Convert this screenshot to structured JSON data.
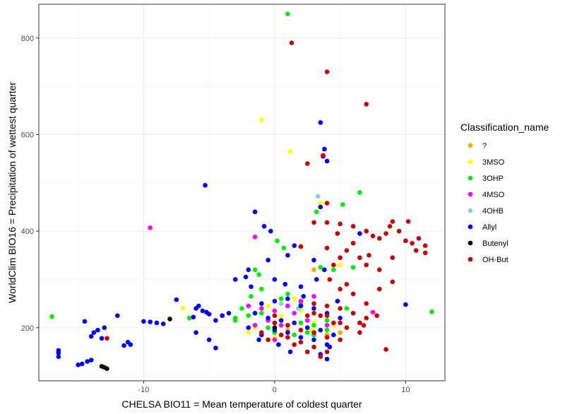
{
  "chart_data": {
    "type": "scatter",
    "xlabel": "CHELSA BIO11 = Mean temperature of coldest quarter",
    "ylabel": "WorldClim BIO16 = Precipitation of wettest quarter",
    "xlim": [
      -18,
      13
    ],
    "ylim": [
      90,
      870
    ],
    "x_ticks": [
      -10,
      0,
      10
    ],
    "y_ticks": [
      200,
      400,
      600,
      800
    ],
    "grid": true,
    "legend_title": "Classification_name",
    "legend_position": "right",
    "series": [
      {
        "name": "?",
        "color": "#FFA500",
        "points": [
          [
            3,
            320
          ],
          [
            2.5,
            200
          ],
          [
            1,
            195
          ],
          [
            4,
            185
          ],
          [
            5,
            190
          ]
        ]
      },
      {
        "name": "3MSO",
        "color": "#FFFF00",
        "points": [
          [
            -1,
            630
          ],
          [
            1.2,
            565
          ],
          [
            3.5,
            458
          ],
          [
            5,
            330
          ],
          [
            -1.5,
            200
          ],
          [
            2,
            235
          ],
          [
            0.5,
            225
          ],
          [
            -0.5,
            245
          ],
          [
            3,
            210
          ],
          [
            4.5,
            205
          ],
          [
            -2,
            190
          ],
          [
            1.5,
            260
          ],
          [
            -7,
            240
          ],
          [
            0,
            180
          ],
          [
            2.8,
            195
          ]
        ]
      },
      {
        "name": "3OHP",
        "color": "#00EE00",
        "points": [
          [
            1,
            850
          ],
          [
            6.5,
            480
          ],
          [
            5.2,
            455
          ],
          [
            3.2,
            440
          ],
          [
            0.2,
            380
          ],
          [
            0.7,
            365
          ],
          [
            3.5,
            325
          ],
          [
            4.5,
            320
          ],
          [
            6,
            325
          ],
          [
            -1.5,
            320
          ],
          [
            -1.2,
            310
          ],
          [
            12,
            233
          ],
          [
            -17,
            223
          ],
          [
            -3,
            220
          ],
          [
            -2,
            225
          ],
          [
            0,
            210
          ],
          [
            1,
            205
          ],
          [
            2,
            210
          ],
          [
            3,
            205
          ],
          [
            4,
            195
          ],
          [
            -1,
            230
          ],
          [
            -2.5,
            240
          ],
          [
            -6.5,
            220
          ],
          [
            -1,
            280
          ],
          [
            0.5,
            260
          ],
          [
            1,
            270
          ],
          [
            2,
            250
          ],
          [
            -0.5,
            200
          ],
          [
            0,
            190
          ],
          [
            1.5,
            185
          ],
          [
            2.5,
            190
          ],
          [
            3,
            185
          ],
          [
            5.5,
            240
          ],
          [
            4,
            215
          ],
          [
            -3,
            215
          ],
          [
            -1.8,
            265
          ]
        ]
      },
      {
        "name": "4MSO",
        "color": "#FF00FF",
        "points": [
          [
            -9.5,
            407
          ],
          [
            -1.5,
            388
          ],
          [
            7.5,
            232
          ],
          [
            -4,
            225
          ],
          [
            -1,
            240
          ],
          [
            0,
            235
          ],
          [
            1,
            245
          ],
          [
            2,
            255
          ],
          [
            3,
            265
          ],
          [
            -0.5,
            215
          ],
          [
            0.5,
            205
          ],
          [
            1.5,
            230
          ],
          [
            -1.5,
            205
          ],
          [
            2.5,
            215
          ],
          [
            -2,
            245
          ],
          [
            4,
            205
          ],
          [
            0,
            175
          ]
        ]
      },
      {
        "name": "4OHB",
        "color": "#87CEEB",
        "points": [
          [
            3.3,
            472
          ],
          [
            1.8,
            240
          ],
          [
            0.5,
            250
          ]
        ]
      },
      {
        "name": "Allyl",
        "color": "#0000FF",
        "points": [
          [
            3.5,
            625
          ],
          [
            3.8,
            570
          ],
          [
            3.7,
            555
          ],
          [
            4,
            545
          ],
          [
            -5.3,
            495
          ],
          [
            -1.5,
            440
          ],
          [
            3.5,
            450
          ],
          [
            6.5,
            395
          ],
          [
            -0.8,
            410
          ],
          [
            -0.3,
            400
          ],
          [
            1.5,
            370
          ],
          [
            10,
            248
          ],
          [
            -12,
            225
          ],
          [
            -10,
            213
          ],
          [
            -9.5,
            212
          ],
          [
            -9,
            210
          ],
          [
            -8.5,
            208
          ],
          [
            -7.5,
            258
          ],
          [
            -6,
            240
          ],
          [
            -5.8,
            245
          ],
          [
            -5.5,
            235
          ],
          [
            -5.2,
            232
          ],
          [
            -5,
            228
          ],
          [
            -6.2,
            222
          ],
          [
            -4.5,
            215
          ],
          [
            -4,
            225
          ],
          [
            -3.5,
            230
          ],
          [
            -6,
            190
          ],
          [
            -5,
            175
          ],
          [
            -4.5,
            158
          ],
          [
            -11,
            165
          ],
          [
            -11.2,
            170
          ],
          [
            -11.5,
            163
          ],
          [
            -13,
            200
          ],
          [
            -13.5,
            195
          ],
          [
            -13.8,
            190
          ],
          [
            -14,
            182
          ],
          [
            -13.2,
            178
          ],
          [
            -14.5,
            213
          ],
          [
            -15,
            123
          ],
          [
            -14.7,
            125
          ],
          [
            -14.3,
            130
          ],
          [
            -14,
            133
          ],
          [
            -16.5,
            153
          ],
          [
            -16.5,
            140
          ],
          [
            -16.5,
            148
          ],
          [
            -1,
            250
          ],
          [
            0,
            255
          ],
          [
            1,
            260
          ],
          [
            2,
            245
          ],
          [
            3,
            240
          ],
          [
            4,
            230
          ],
          [
            5,
            220
          ],
          [
            -1.5,
            230
          ],
          [
            -0.5,
            220
          ],
          [
            0.5,
            215
          ],
          [
            1.5,
            210
          ],
          [
            2.5,
            200
          ],
          [
            3.5,
            195
          ],
          [
            4.5,
            185
          ],
          [
            0,
            195
          ],
          [
            -1,
            185
          ],
          [
            1,
            190
          ],
          [
            2,
            180
          ],
          [
            3,
            175
          ],
          [
            4,
            165
          ],
          [
            3.5,
            145
          ],
          [
            4,
            135
          ],
          [
            4.2,
            160
          ],
          [
            -2,
            200
          ],
          [
            -1.2,
            175
          ],
          [
            0.3,
            165
          ],
          [
            1.2,
            150
          ],
          [
            2.2,
            265
          ],
          [
            4.8,
            255
          ],
          [
            3,
            340
          ],
          [
            3.8,
            320
          ],
          [
            1,
            350
          ],
          [
            -2,
            320
          ],
          [
            -0.5,
            340
          ],
          [
            -3,
            300
          ],
          [
            -2.2,
            305
          ],
          [
            0.8,
            290
          ],
          [
            2,
            285
          ],
          [
            3.2,
            300
          ],
          [
            -1.8,
            285
          ],
          [
            0,
            300
          ]
        ]
      },
      {
        "name": "Butenyl",
        "color": "#000000",
        "points": [
          [
            -8,
            218
          ],
          [
            -13,
            118
          ],
          [
            -12.8,
            115
          ],
          [
            -13.2,
            120
          ],
          [
            0,
            200
          ]
        ]
      },
      {
        "name": "OH-But",
        "color": "#CC0000",
        "points": [
          [
            1.3,
            790
          ],
          [
            4,
            730
          ],
          [
            7,
            663
          ],
          [
            3.7,
            557
          ],
          [
            2.5,
            540
          ],
          [
            4,
            458
          ],
          [
            3,
            418
          ],
          [
            4,
            418
          ],
          [
            5,
            415
          ],
          [
            6,
            410
          ],
          [
            7,
            400
          ],
          [
            7.5,
            390
          ],
          [
            8,
            385
          ],
          [
            8.5,
            395
          ],
          [
            9,
            420
          ],
          [
            9.5,
            400
          ],
          [
            10,
            380
          ],
          [
            10.5,
            375
          ],
          [
            11,
            385
          ],
          [
            11.5,
            370
          ],
          [
            10.2,
            420
          ],
          [
            8.8,
            410
          ],
          [
            7.2,
            350
          ],
          [
            6.5,
            345
          ],
          [
            7,
            330
          ],
          [
            8,
            320
          ],
          [
            9,
            345
          ],
          [
            10.8,
            360
          ],
          [
            11.5,
            355
          ],
          [
            6,
            375
          ],
          [
            5.5,
            360
          ],
          [
            5,
            345
          ],
          [
            4.5,
            330
          ],
          [
            4,
            365
          ],
          [
            4.8,
            395
          ],
          [
            2,
            368
          ],
          [
            4.2,
            300
          ],
          [
            5,
            280
          ],
          [
            5.5,
            290
          ],
          [
            6,
            270
          ],
          [
            7,
            250
          ],
          [
            8,
            280
          ],
          [
            9,
            295
          ],
          [
            3,
            250
          ],
          [
            4,
            245
          ],
          [
            5,
            240
          ],
          [
            6,
            230
          ],
          [
            7,
            220
          ],
          [
            2.5,
            225
          ],
          [
            3.5,
            225
          ],
          [
            4.5,
            210
          ],
          [
            5.5,
            200
          ],
          [
            6.5,
            190
          ],
          [
            1,
            205
          ],
          [
            2,
            195
          ],
          [
            3,
            190
          ],
          [
            4,
            180
          ],
          [
            5,
            175
          ],
          [
            0,
            210
          ],
          [
            1,
            180
          ],
          [
            2,
            170
          ],
          [
            3,
            160
          ],
          [
            2.5,
            150
          ],
          [
            3.5,
            140
          ],
          [
            4,
            150
          ],
          [
            8.5,
            155
          ],
          [
            6.5,
            210
          ],
          [
            -1,
            190
          ],
          [
            0.5,
            185
          ],
          [
            1.5,
            165
          ],
          [
            -0.5,
            175
          ],
          [
            3,
            230
          ],
          [
            4,
            225
          ],
          [
            5,
            210
          ],
          [
            -12.8,
            178
          ],
          [
            6.8,
            205
          ],
          [
            7.8,
            225
          ],
          [
            0,
            225
          ]
        ]
      }
    ]
  }
}
